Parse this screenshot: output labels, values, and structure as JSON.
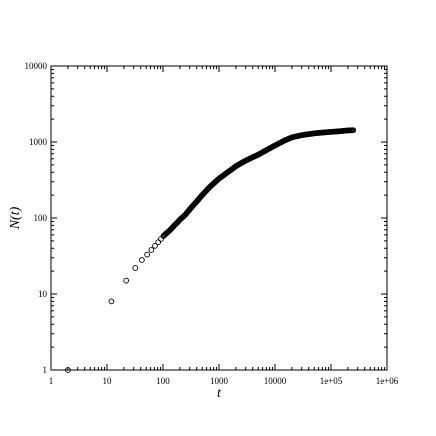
{
  "chart_data": {
    "type": "scatter",
    "title": "",
    "xlabel": "t",
    "ylabel": "N(t)",
    "xscale": "log",
    "yscale": "log",
    "xlim": [
      1,
      1000000
    ],
    "ylim": [
      1,
      10000
    ],
    "grid": false,
    "legend": "none",
    "x_tick_labels": [
      "1",
      "10",
      "100",
      "1000",
      "10000",
      "1e+05",
      "1e+06"
    ],
    "y_tick_labels": [
      "1",
      "10",
      "100",
      "1000",
      "10000"
    ],
    "marker": "open-circle",
    "colors": {
      "marker": "#000000",
      "axis": "#000000",
      "background": "#ffffff"
    },
    "series": [
      {
        "x": [
          2,
          12,
          22,
          32,
          42,
          52,
          62,
          72,
          82,
          92,
          102,
          115,
          130,
          145,
          160,
          180,
          200,
          250,
          300,
          400,
          500,
          700,
          1000,
          1500,
          2000,
          3000,
          4000,
          5000,
          7000,
          10000,
          15000,
          20000,
          30000,
          40000,
          50000,
          70000,
          100000,
          150000,
          200000,
          250000
        ],
        "y": [
          1,
          8,
          15,
          22,
          28,
          33,
          38,
          43,
          48,
          53,
          58,
          63,
          68,
          74,
          80,
          87,
          95,
          110,
          130,
          165,
          200,
          260,
          330,
          410,
          480,
          570,
          630,
          680,
          780,
          900,
          1050,
          1150,
          1230,
          1270,
          1300,
          1330,
          1360,
          1390,
          1420,
          1430
        ]
      }
    ]
  }
}
